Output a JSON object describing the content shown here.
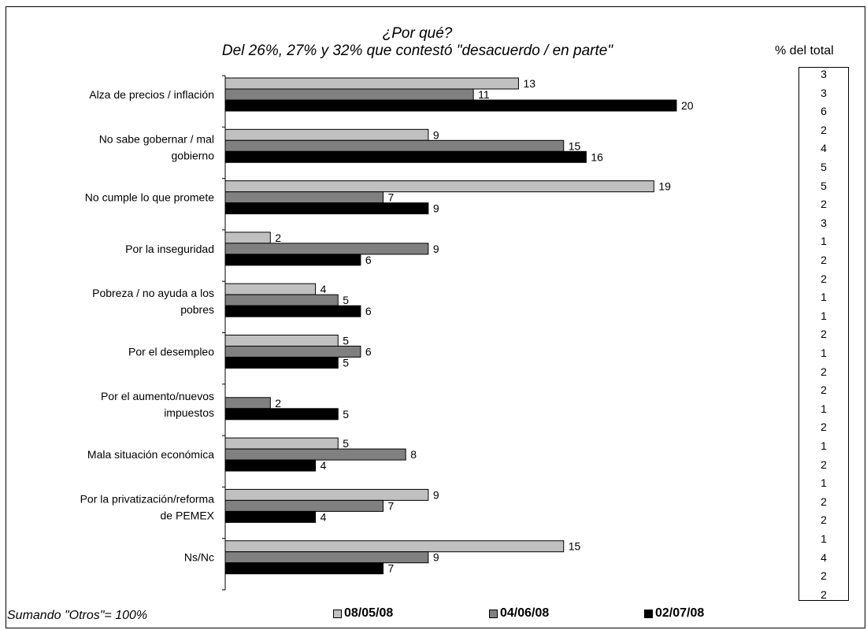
{
  "title_line1": "¿Por qué?",
  "title_line2": "Del 26%, 27% y 32% que contestó \"desacuerdo / en parte\"",
  "pct_header": "% del total",
  "pct_values": [
    "3",
    "3",
    "6",
    "2",
    "4",
    "5",
    "5",
    "2",
    "3",
    "1",
    "2",
    "2",
    "1",
    "1",
    "2",
    "1",
    "2",
    "2",
    "1",
    "2",
    "1",
    "2",
    "1",
    "2",
    "2",
    "1",
    "4",
    "2",
    "2"
  ],
  "footnote": "Sumando \"Otros\"= 100%",
  "colors": {
    "s1": "#c0c0c0",
    "s2": "#808080",
    "s3": "#000000"
  },
  "chart_data": {
    "type": "bar",
    "orientation": "horizontal",
    "categories": [
      "Alza de precios / inflación",
      "No sabe gobernar / mal gobierno",
      "No cumple lo que promete",
      "Por la inseguridad",
      "Pobreza / no ayuda a los pobres",
      "Por el desempleo",
      "Por el aumento/nuevos impuestos",
      "Mala situación económica",
      "Por la privatización/reforma de PEMEX",
      "Ns/Nc"
    ],
    "category_lines": [
      [
        "Alza de precios / inflación"
      ],
      [
        "No sabe gobernar / mal",
        "gobierno"
      ],
      [
        "No cumple lo que promete"
      ],
      [
        "Por la inseguridad"
      ],
      [
        "Pobreza / no ayuda a los",
        "pobres"
      ],
      [
        "Por el desempleo"
      ],
      [
        "Por el aumento/nuevos",
        "impuestos"
      ],
      [
        "Mala situación económica"
      ],
      [
        "Por la privatización/reforma",
        "de PEMEX"
      ],
      [
        "Ns/Nc"
      ]
    ],
    "series": [
      {
        "name": "08/05/08",
        "color": "#c0c0c0",
        "values": [
          13,
          9,
          19,
          2,
          4,
          5,
          null,
          5,
          9,
          15
        ]
      },
      {
        "name": "04/06/08",
        "color": "#808080",
        "values": [
          11,
          15,
          7,
          9,
          5,
          6,
          2,
          8,
          7,
          9
        ]
      },
      {
        "name": "02/07/08",
        "color": "#000000",
        "values": [
          20,
          16,
          9,
          6,
          6,
          5,
          5,
          4,
          4,
          7
        ]
      }
    ],
    "xlim": [
      0,
      20
    ],
    "legend_position": "bottom",
    "grid": false
  }
}
